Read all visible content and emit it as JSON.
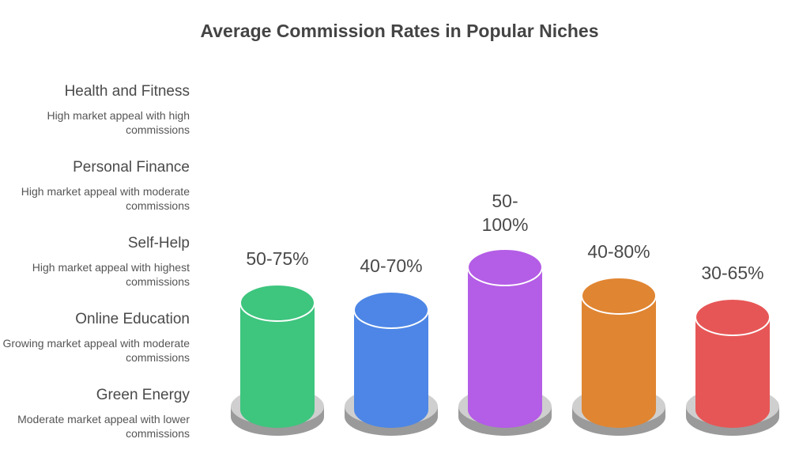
{
  "chart_data": {
    "type": "bar",
    "title": "Average Commission Rates in Popular Niches",
    "categories": [
      "Health and Fitness",
      "Personal Finance",
      "Self-Help",
      "Online Education",
      "Green Energy"
    ],
    "descriptions": [
      "High market appeal with high commissions",
      "High market appeal with moderate commissions",
      "High market appeal with highest commissions",
      "Growing market appeal with moderate commissions",
      "Moderate market appeal with lower commissions"
    ],
    "labels": [
      "50-75%",
      "40-70%",
      "50-100%",
      "40-80%",
      "30-65%"
    ],
    "ranges": [
      [
        50,
        75
      ],
      [
        40,
        70
      ],
      [
        50,
        100
      ],
      [
        40,
        80
      ],
      [
        30,
        65
      ]
    ],
    "colors": [
      "#3ec57e",
      "#4d86e6",
      "#b45de6",
      "#e08532",
      "#e75656"
    ]
  }
}
